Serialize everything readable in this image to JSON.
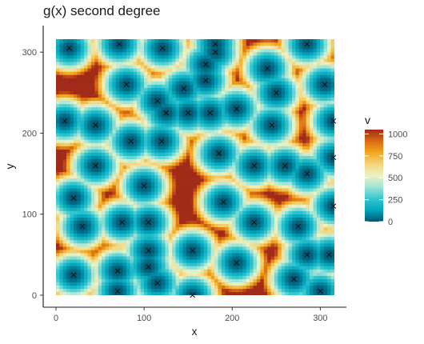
{
  "chart_data": {
    "type": "heatmap",
    "title": "g(x) second degree",
    "xlabel": "x",
    "ylabel": "y",
    "xlim": [
      0,
      316
    ],
    "ylim": [
      0,
      316
    ],
    "x_ticks": [
      0,
      100,
      200,
      300
    ],
    "y_ticks": [
      0,
      100,
      200,
      300
    ],
    "fill": {
      "name": "v",
      "range": [
        0,
        1050
      ],
      "legend_ticks": [
        0,
        250,
        500,
        750,
        1000
      ],
      "colors": [
        "#00536e",
        "#00a7bd",
        "#34c6cf",
        "#a0e4d6",
        "#ecf2c4",
        "#f4d47c",
        "#f2a81a",
        "#d96a12",
        "#a12b18"
      ]
    },
    "points": [
      [
        15,
        305
      ],
      [
        72,
        310
      ],
      [
        121,
        305
      ],
      [
        181,
        310
      ],
      [
        181,
        300
      ],
      [
        170,
        285
      ],
      [
        240,
        280
      ],
      [
        285,
        310
      ],
      [
        80,
        260
      ],
      [
        145,
        255
      ],
      [
        170,
        265
      ],
      [
        250,
        250
      ],
      [
        305,
        260
      ],
      [
        115,
        240
      ],
      [
        125,
        225
      ],
      [
        150,
        225
      ],
      [
        175,
        225
      ],
      [
        205,
        230
      ],
      [
        10,
        215
      ],
      [
        45,
        210
      ],
      [
        245,
        210
      ],
      [
        315,
        215
      ],
      [
        85,
        190
      ],
      [
        120,
        190
      ],
      [
        185,
        175
      ],
      [
        315,
        170
      ],
      [
        45,
        160
      ],
      [
        225,
        160
      ],
      [
        260,
        160
      ],
      [
        285,
        150
      ],
      [
        100,
        135
      ],
      [
        20,
        120
      ],
      [
        190,
        115
      ],
      [
        315,
        110
      ],
      [
        75,
        90
      ],
      [
        105,
        90
      ],
      [
        225,
        90
      ],
      [
        30,
        85
      ],
      [
        275,
        85
      ],
      [
        105,
        55
      ],
      [
        155,
        55
      ],
      [
        285,
        50
      ],
      [
        310,
        50
      ],
      [
        205,
        40
      ],
      [
        105,
        35
      ],
      [
        70,
        30
      ],
      [
        20,
        25
      ],
      [
        270,
        20
      ],
      [
        115,
        15
      ],
      [
        70,
        5
      ],
      [
        155,
        0
      ],
      [
        300,
        5
      ]
    ]
  }
}
